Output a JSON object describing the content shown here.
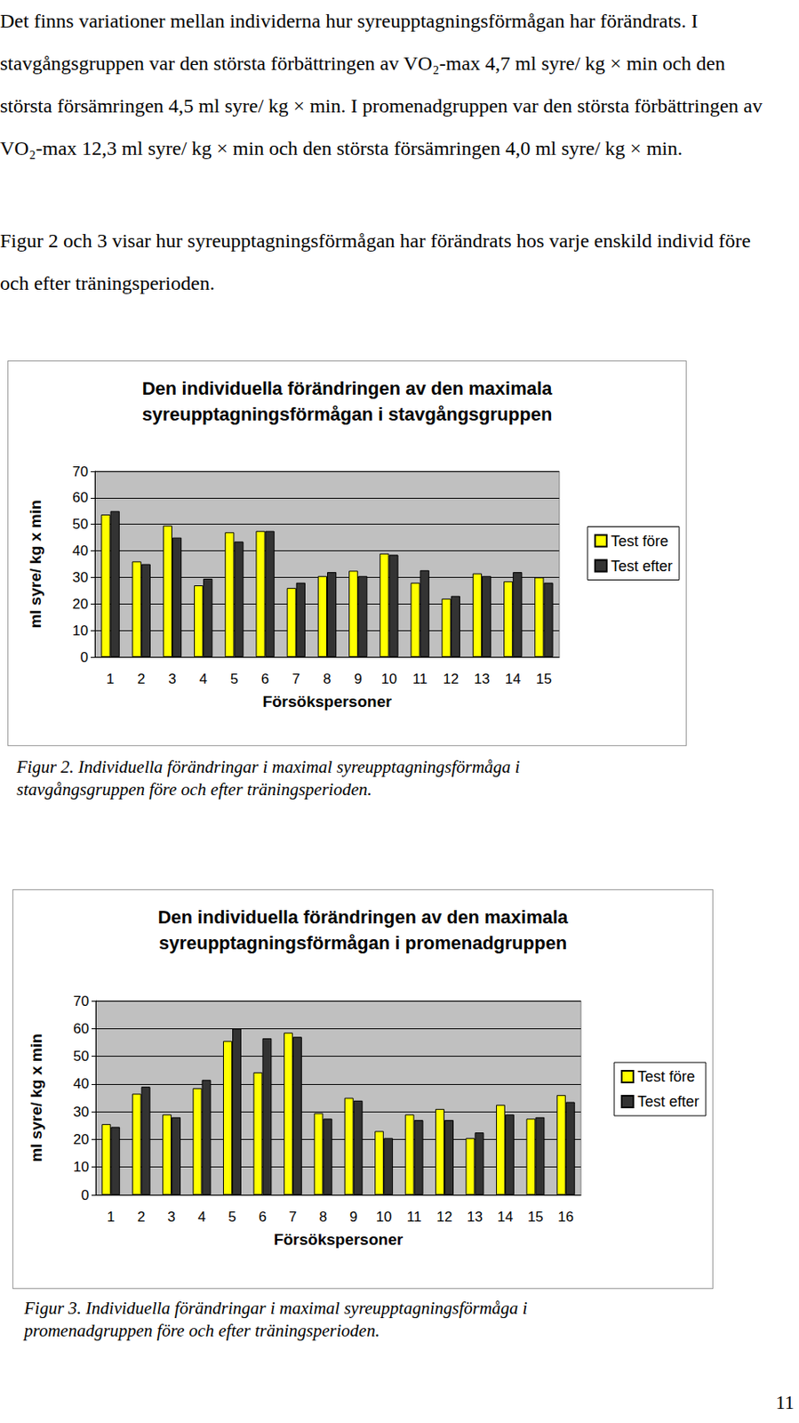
{
  "paragraphs": [
    "Det finns variationer mellan individerna hur syreupptagningsförmågan har förändrats. I stavgångsgruppen var den största förbättringen av VO₂-max 4,7 ml syre/ kg × min och den största försämringen 4,5 ml syre/ kg × min. I promenadgruppen var den största förbättringen av VO₂-max 12,3 ml syre/ kg × min och den största försämringen 4,0 ml syre/ kg × min.",
    "Figur 2 och 3 visar hur syreupptagningsförmågan har förändrats hos varje enskild individ före och efter träningsperioden."
  ],
  "chart_data": [
    {
      "type": "bar",
      "title": "Den individuella förändringen av den maximala\nsyreupptagningsförmågan i stavgångsgruppen",
      "x_label": "Försökspersoner",
      "y_label": "ml syre/ kg x min",
      "categories": [
        "1",
        "2",
        "3",
        "4",
        "5",
        "6",
        "7",
        "8",
        "9",
        "10",
        "11",
        "12",
        "13",
        "14",
        "15"
      ],
      "series": [
        {
          "name": "Test före",
          "color": "#ffff00",
          "values": [
            53.7,
            36,
            49.5,
            27,
            47,
            47.5,
            26,
            30.5,
            32.5,
            39,
            28,
            22,
            31.5,
            28.5,
            30
          ]
        },
        {
          "name": "Test efter",
          "color": "#333333",
          "values": [
            55,
            35,
            45,
            29.5,
            43.5,
            47.5,
            28,
            32,
            30.5,
            38.5,
            32.7,
            23,
            30.5,
            32,
            28
          ]
        }
      ],
      "ylim": [
        0,
        70
      ],
      "yticks": [
        0,
        10,
        20,
        30,
        40,
        50,
        60,
        70
      ],
      "grid": true,
      "legend": "right"
    },
    {
      "type": "bar",
      "title": "Den individuella förändringen av den maximala\nsyreupptagningsförmågan i promenadgruppen",
      "x_label": "Försökspersoner",
      "y_label": "ml syre/ kg x min",
      "categories": [
        "1",
        "2",
        "3",
        "4",
        "5",
        "6",
        "7",
        "8",
        "9",
        "10",
        "11",
        "12",
        "13",
        "14",
        "15",
        "16"
      ],
      "series": [
        {
          "name": "Test före",
          "color": "#ffff00",
          "values": [
            25.5,
            36.5,
            29,
            38.5,
            55.5,
            44.2,
            58.5,
            29.5,
            35,
            23,
            29,
            31,
            20.5,
            32.5,
            27.5,
            36
          ]
        },
        {
          "name": "Test efter",
          "color": "#333333",
          "values": [
            24.5,
            39,
            28,
            41.5,
            60,
            56.5,
            57,
            27.5,
            34,
            20.5,
            27,
            27,
            22.5,
            29,
            28,
            33.5
          ]
        }
      ],
      "ylim": [
        0,
        70
      ],
      "yticks": [
        0,
        10,
        20,
        30,
        40,
        50,
        60,
        70
      ],
      "grid": true,
      "legend": "right"
    }
  ],
  "captions": [
    "Figur 2. Individuella förändringar i maximal syreupptagningsförmåga i stavgångsgruppen före och efter träningsperioden.",
    "Figur 3. Individuella förändringar i maximal syreupptagningsförmåga i promenadgruppen före och efter träningsperioden."
  ],
  "page_number": 11
}
